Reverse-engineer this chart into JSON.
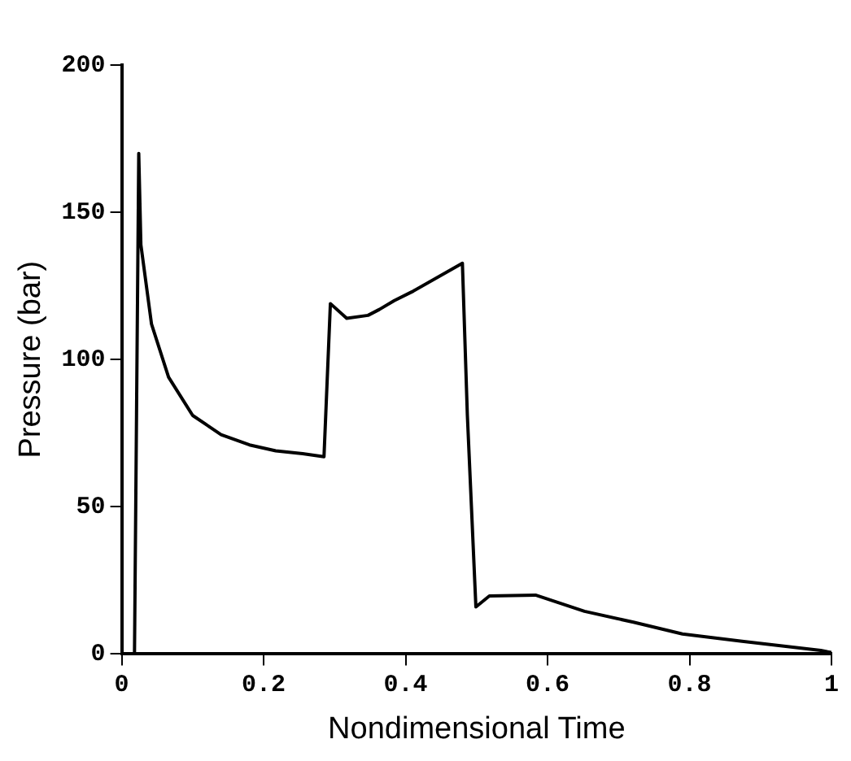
{
  "chart_data": {
    "type": "line",
    "xlabel": "Nondimensional Time",
    "ylabel": "Pressure (bar)",
    "xlim": [
      0,
      1
    ],
    "xticks": [
      0,
      0.2,
      0.4,
      0.6,
      0.8,
      1
    ],
    "ylim": [
      0,
      200
    ],
    "yticks": [
      0,
      50,
      100,
      150,
      200
    ],
    "grid": false,
    "legend": false,
    "marker": "none",
    "line_style": "solid",
    "series": [
      {
        "color": "#000000",
        "x": [
          0.018,
          0.024,
          0.027,
          0.042,
          0.066,
          0.1,
          0.14,
          0.18,
          0.217,
          0.255,
          0.285,
          0.294,
          0.317,
          0.347,
          0.363,
          0.384,
          0.409,
          0.48,
          0.487,
          0.499,
          0.518,
          0.583,
          0.652,
          0.721,
          0.79,
          0.874,
          0.985,
          1
        ],
        "values": [
          0,
          170,
          139,
          112,
          94,
          81,
          74.5,
          71,
          69,
          68,
          67,
          119,
          114,
          115,
          117,
          120,
          123,
          132.7,
          81,
          16,
          19.7,
          20,
          14.5,
          10.8,
          6.8,
          4.3,
          1.2,
          0.5
        ]
      }
    ]
  }
}
